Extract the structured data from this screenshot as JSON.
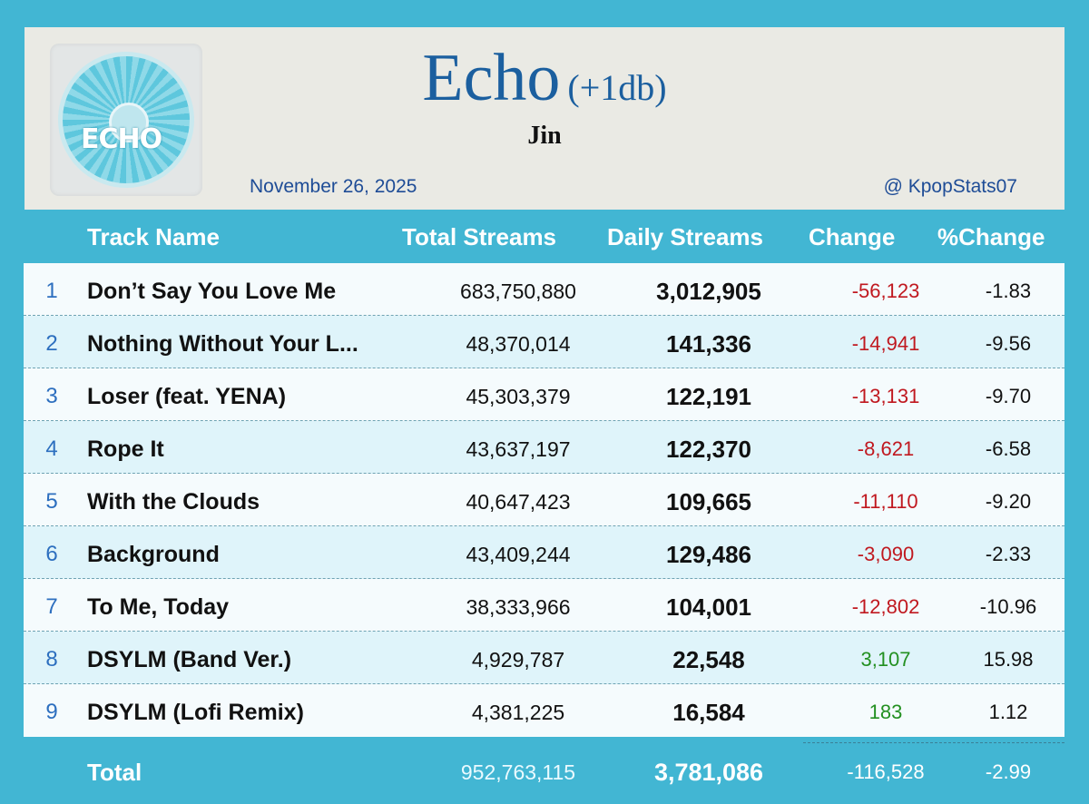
{
  "header": {
    "album_art_text": "ECHO",
    "title": "Echo",
    "title_suffix": "(+1db)",
    "artist": "Jin",
    "date": "November 26, 2025",
    "handle": "@ KpopStats07"
  },
  "columns": {
    "track": "Track Name",
    "total": "Total Streams",
    "daily": "Daily Streams",
    "change": "Change",
    "pct": "%Change"
  },
  "rows": [
    {
      "rank": "1",
      "name": "Don’t Say You Love Me",
      "total": "683,750,880",
      "daily": "3,012,905",
      "change": "-56,123",
      "pct": "-1.83"
    },
    {
      "rank": "2",
      "name": "Nothing Without Your L...",
      "total": "48,370,014",
      "daily": "141,336",
      "change": "-14,941",
      "pct": "-9.56"
    },
    {
      "rank": "3",
      "name": "Loser (feat. YENA)",
      "total": "45,303,379",
      "daily": "122,191",
      "change": "-13,131",
      "pct": "-9.70"
    },
    {
      "rank": "4",
      "name": "Rope It",
      "total": "43,637,197",
      "daily": "122,370",
      "change": "-8,621",
      "pct": "-6.58"
    },
    {
      "rank": "5",
      "name": "With the Clouds",
      "total": "40,647,423",
      "daily": "109,665",
      "change": "-11,110",
      "pct": "-9.20"
    },
    {
      "rank": "6",
      "name": "Background",
      "total": "43,409,244",
      "daily": "129,486",
      "change": "-3,090",
      "pct": "-2.33"
    },
    {
      "rank": "7",
      "name": "To Me, Today",
      "total": "38,333,966",
      "daily": "104,001",
      "change": "-12,802",
      "pct": "-10.96"
    },
    {
      "rank": "8",
      "name": "DSYLM (Band Ver.)",
      "total": "4,929,787",
      "daily": "22,548",
      "change": "3,107",
      "pct": "15.98"
    },
    {
      "rank": "9",
      "name": "DSYLM (Lofi Remix)",
      "total": "4,381,225",
      "daily": "16,584",
      "change": "183",
      "pct": "1.12"
    }
  ],
  "totals": {
    "label": "Total",
    "total": "952,763,115",
    "daily": "3,781,086",
    "change": "-116,528",
    "pct": "-2.99"
  },
  "colors": {
    "background": "#42b6d3",
    "title": "#1b5f9f",
    "negative": "#c0181f",
    "positive": "#239021"
  }
}
